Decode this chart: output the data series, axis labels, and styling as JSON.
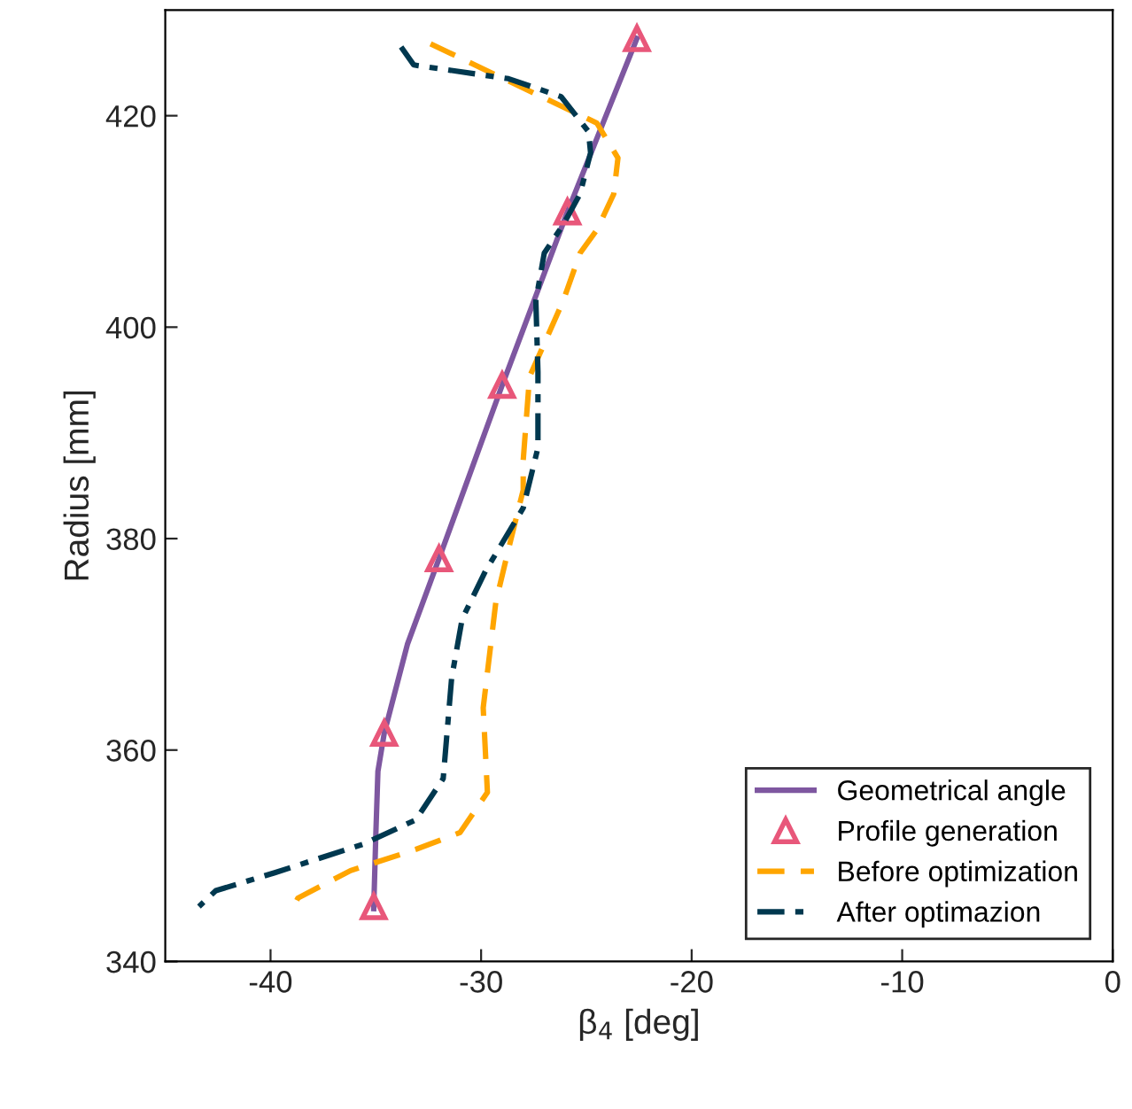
{
  "chart_data": {
    "type": "line",
    "xlabel": "β$_{4}$ [deg]",
    "ylabel": "Radius [mm]",
    "xlim": [
      -45,
      0
    ],
    "ylim": [
      340,
      430
    ],
    "xticks": [
      -40,
      -30,
      -20,
      -10,
      0
    ],
    "yticks": [
      340,
      360,
      380,
      400,
      420
    ],
    "grid": false,
    "legend": "bottom right",
    "series": [
      {
        "name": "Geometrical angle",
        "color": "#7e57a0",
        "line_style": "solid",
        "marker": "none",
        "x": [
          -35.1,
          -35.0,
          -34.9,
          -34.6,
          -33.5,
          -32.0,
          -29.0,
          -25.9,
          -22.6
        ],
        "values": [
          345,
          352,
          358,
          361.6,
          370,
          378.1,
          394.5,
          410.9,
          427.3
        ]
      },
      {
        "name": "Profile generation",
        "type": "scatter",
        "color": "#e8577a",
        "marker": "triangle",
        "x": [
          -35.1,
          -34.6,
          -32.0,
          -29.0,
          -25.9,
          -22.6
        ],
        "values": [
          345.2,
          361.6,
          378.1,
          394.5,
          410.9,
          427.3
        ]
      },
      {
        "name": "Before optimization",
        "color": "#ffa500",
        "line_style": "dashed",
        "marker": "none",
        "x": [
          -32.4,
          -24.5,
          -23.5,
          -23.7,
          -24.5,
          -25.3,
          -26.1,
          -27.7,
          -28.0,
          -28.0,
          -28.7,
          -29.3,
          -29.9,
          -29.7,
          -31.0,
          -33.1,
          -36.2,
          -38.7,
          -38.9
        ],
        "values": [
          426.8,
          419.3,
          416,
          412.6,
          409.2,
          407,
          402.5,
          395.3,
          387.4,
          384.6,
          379,
          374,
          364,
          356,
          352.2,
          350.6,
          348.6,
          346,
          345.2
        ]
      },
      {
        "name": "After optimazion",
        "color": "#00384f",
        "line_style": "dashdot",
        "marker": "none",
        "x": [
          -33.8,
          -33.2,
          -28.7,
          -26.2,
          -24.9,
          -24.8,
          -25.3,
          -26.1,
          -27.0,
          -27.4,
          -27.3,
          -27.3,
          -28.0,
          -29.8,
          -30.9,
          -31.4,
          -31.8,
          -33.1,
          -35.6,
          -39.8,
          -42.6,
          -43.4
        ],
        "values": [
          426.5,
          424.8,
          423.5,
          421.8,
          418.5,
          416.5,
          412.6,
          409.7,
          407,
          402.5,
          395.8,
          388.6,
          382.9,
          376.9,
          372.4,
          366.8,
          357.3,
          353.4,
          351.1,
          348.4,
          346.7,
          345.2
        ]
      }
    ]
  }
}
